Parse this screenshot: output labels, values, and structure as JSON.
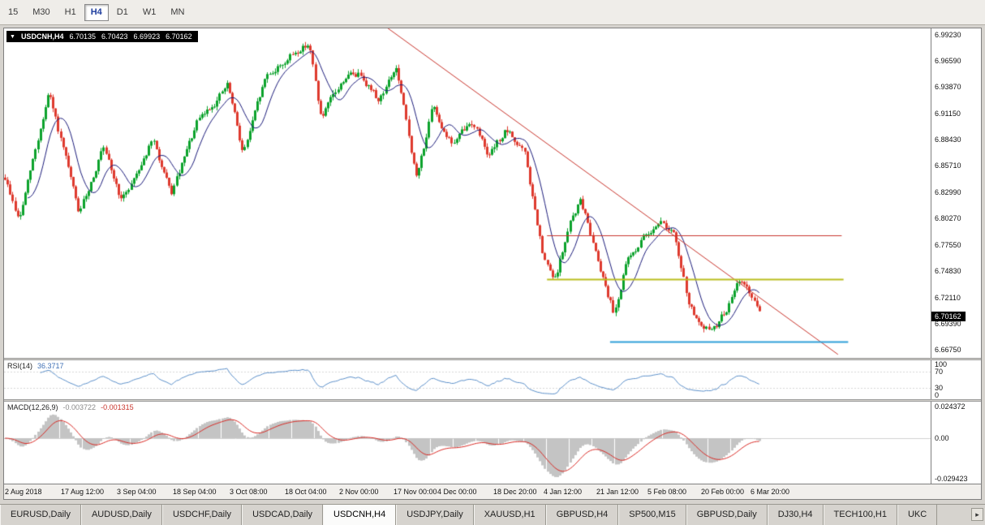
{
  "toolbar": {
    "timeframe_buttons": [
      {
        "label": "15",
        "active": false
      },
      {
        "label": "M30",
        "active": false
      },
      {
        "label": "H1",
        "active": false
      },
      {
        "label": "H4",
        "active": true
      },
      {
        "label": "D1",
        "active": false
      },
      {
        "label": "W1",
        "active": false
      },
      {
        "label": "MN",
        "active": false
      }
    ]
  },
  "chart_header": {
    "symbol": "USDCNH,H4",
    "open": "6.70135",
    "high": "6.70423",
    "low": "6.69923",
    "close": "6.70162"
  },
  "price_axis": {
    "labels": [
      "6.99230",
      "6.96590",
      "6.93870",
      "6.91150",
      "6.88430",
      "6.85710",
      "6.82990",
      "6.80270",
      "6.77550",
      "6.74830",
      "6.72110",
      "6.69390",
      "6.66750"
    ],
    "current_price": "6.70162"
  },
  "rsi_panel": {
    "name": "RSI(14)",
    "value": "36.3717",
    "scale_labels": [
      "100",
      "70",
      "30",
      "0"
    ]
  },
  "macd_panel": {
    "name": "MACD(12,26,9)",
    "main_value": "-0.003722",
    "signal_value": "-0.001315",
    "scale_top": "0.024372",
    "scale_zero": "0.00",
    "scale_bottom": "-0.029423"
  },
  "time_axis": {
    "labels": [
      {
        "text": "2 Aug 2018",
        "pos": 0.001
      },
      {
        "text": "17 Aug 12:00",
        "pos": 0.061
      },
      {
        "text": "3 Sep 04:00",
        "pos": 0.122
      },
      {
        "text": "18 Sep 04:00",
        "pos": 0.182
      },
      {
        "text": "3 Oct 08:00",
        "pos": 0.243
      },
      {
        "text": "18 Oct 04:00",
        "pos": 0.303
      },
      {
        "text": "2 Nov 00:00",
        "pos": 0.362
      },
      {
        "text": "17 Nov 00:00",
        "pos": 0.42
      },
      {
        "text": "4 Dec 00:00",
        "pos": 0.468
      },
      {
        "text": "18 Dec 20:00",
        "pos": 0.528
      },
      {
        "text": "4 Jan 12:00",
        "pos": 0.582
      },
      {
        "text": "21 Jan 12:00",
        "pos": 0.639
      },
      {
        "text": "5 Feb 08:00",
        "pos": 0.694
      },
      {
        "text": "20 Feb 00:00",
        "pos": 0.752
      },
      {
        "text": "6 Mar 20:00",
        "pos": 0.806
      }
    ]
  },
  "window_tabs": {
    "tabs": [
      {
        "label": "EURUSD,Daily",
        "active": false
      },
      {
        "label": "AUDUSD,Daily",
        "active": false
      },
      {
        "label": "USDCHF,Daily",
        "active": false
      },
      {
        "label": "USDCAD,Daily",
        "active": false
      },
      {
        "label": "USDCNH,H4",
        "active": true
      },
      {
        "label": "USDJPY,Daily",
        "active": false
      },
      {
        "label": "XAUUSD,H1",
        "active": false
      },
      {
        "label": "GBPUSD,H4",
        "active": false
      },
      {
        "label": "SP500,M15",
        "active": false
      },
      {
        "label": "GBPUSD,Daily",
        "active": false
      },
      {
        "label": "DJ30,H4",
        "active": false
      },
      {
        "label": "TECH100,H1",
        "active": false
      },
      {
        "label": "UKC",
        "active": false
      }
    ],
    "scroll_right_icon": "▸"
  },
  "chart_data": {
    "type": "candlestick",
    "symbol": "USDCNH",
    "timeframe": "H4",
    "current_ohlc": {
      "open": 6.70135,
      "high": 6.70423,
      "low": 6.69923,
      "close": 6.70162
    },
    "price_min": 6.659,
    "price_max": 6.999,
    "candle_count": 300,
    "plot_start_frac": 0.001,
    "plot_end_frac": 0.815,
    "seed": 9,
    "noise": 0.0075,
    "wick": 0.004,
    "ma_period": 10,
    "rsi_period": 14,
    "macd_periods": [
      12,
      26,
      9
    ],
    "macd_zero_frac": 0.45,
    "price_path": [
      [
        0.001,
        6.845
      ],
      [
        0.016,
        6.8
      ],
      [
        0.048,
        6.932
      ],
      [
        0.081,
        6.806
      ],
      [
        0.106,
        6.875
      ],
      [
        0.127,
        6.82
      ],
      [
        0.16,
        6.884
      ],
      [
        0.18,
        6.826
      ],
      [
        0.208,
        6.9
      ],
      [
        0.241,
        6.94
      ],
      [
        0.258,
        6.87
      ],
      [
        0.283,
        6.95
      ],
      [
        0.329,
        6.985
      ],
      [
        0.342,
        6.905
      ],
      [
        0.369,
        6.95
      ],
      [
        0.386,
        6.952
      ],
      [
        0.404,
        6.925
      ],
      [
        0.423,
        6.958
      ],
      [
        0.445,
        6.843
      ],
      [
        0.462,
        6.916
      ],
      [
        0.484,
        6.88
      ],
      [
        0.506,
        6.903
      ],
      [
        0.524,
        6.868
      ],
      [
        0.541,
        6.893
      ],
      [
        0.561,
        6.872
      ],
      [
        0.582,
        6.76
      ],
      [
        0.594,
        6.737
      ],
      [
        0.611,
        6.798
      ],
      [
        0.622,
        6.822
      ],
      [
        0.642,
        6.758
      ],
      [
        0.658,
        6.706
      ],
      [
        0.672,
        6.758
      ],
      [
        0.69,
        6.783
      ],
      [
        0.707,
        6.802
      ],
      [
        0.722,
        6.788
      ],
      [
        0.738,
        6.718
      ],
      [
        0.754,
        6.684
      ],
      [
        0.769,
        6.692
      ],
      [
        0.782,
        6.714
      ],
      [
        0.795,
        6.742
      ],
      [
        0.806,
        6.722
      ],
      [
        0.815,
        6.702
      ]
    ],
    "overlay_lines": [
      {
        "type": "trend",
        "color": "#c8342c",
        "width": 1,
        "x1": 0.412,
        "p1": 7.0007,
        "x2": 0.9,
        "p2": 6.6625
      },
      {
        "type": "horizontal",
        "color": "#c8342c",
        "width": 1,
        "price": 6.7856,
        "x1": 0.586,
        "x2": 0.904
      },
      {
        "type": "horizontal",
        "color": "#b9bd1f",
        "width": 2,
        "price": 6.74,
        "x1": 0.586,
        "x2": 0.906
      },
      {
        "type": "horizontal",
        "color": "#2f9fd8",
        "width": 2,
        "price": 6.676,
        "x1": 0.654,
        "x2": 0.911
      }
    ],
    "colors": {
      "up": "#0ca22c",
      "down": "#de3a2e",
      "ma": "#1b1b7a",
      "rsi": "#5b8fc9",
      "macd_hist": "#c4c4c4",
      "macd_signal": "#d92b26"
    }
  }
}
